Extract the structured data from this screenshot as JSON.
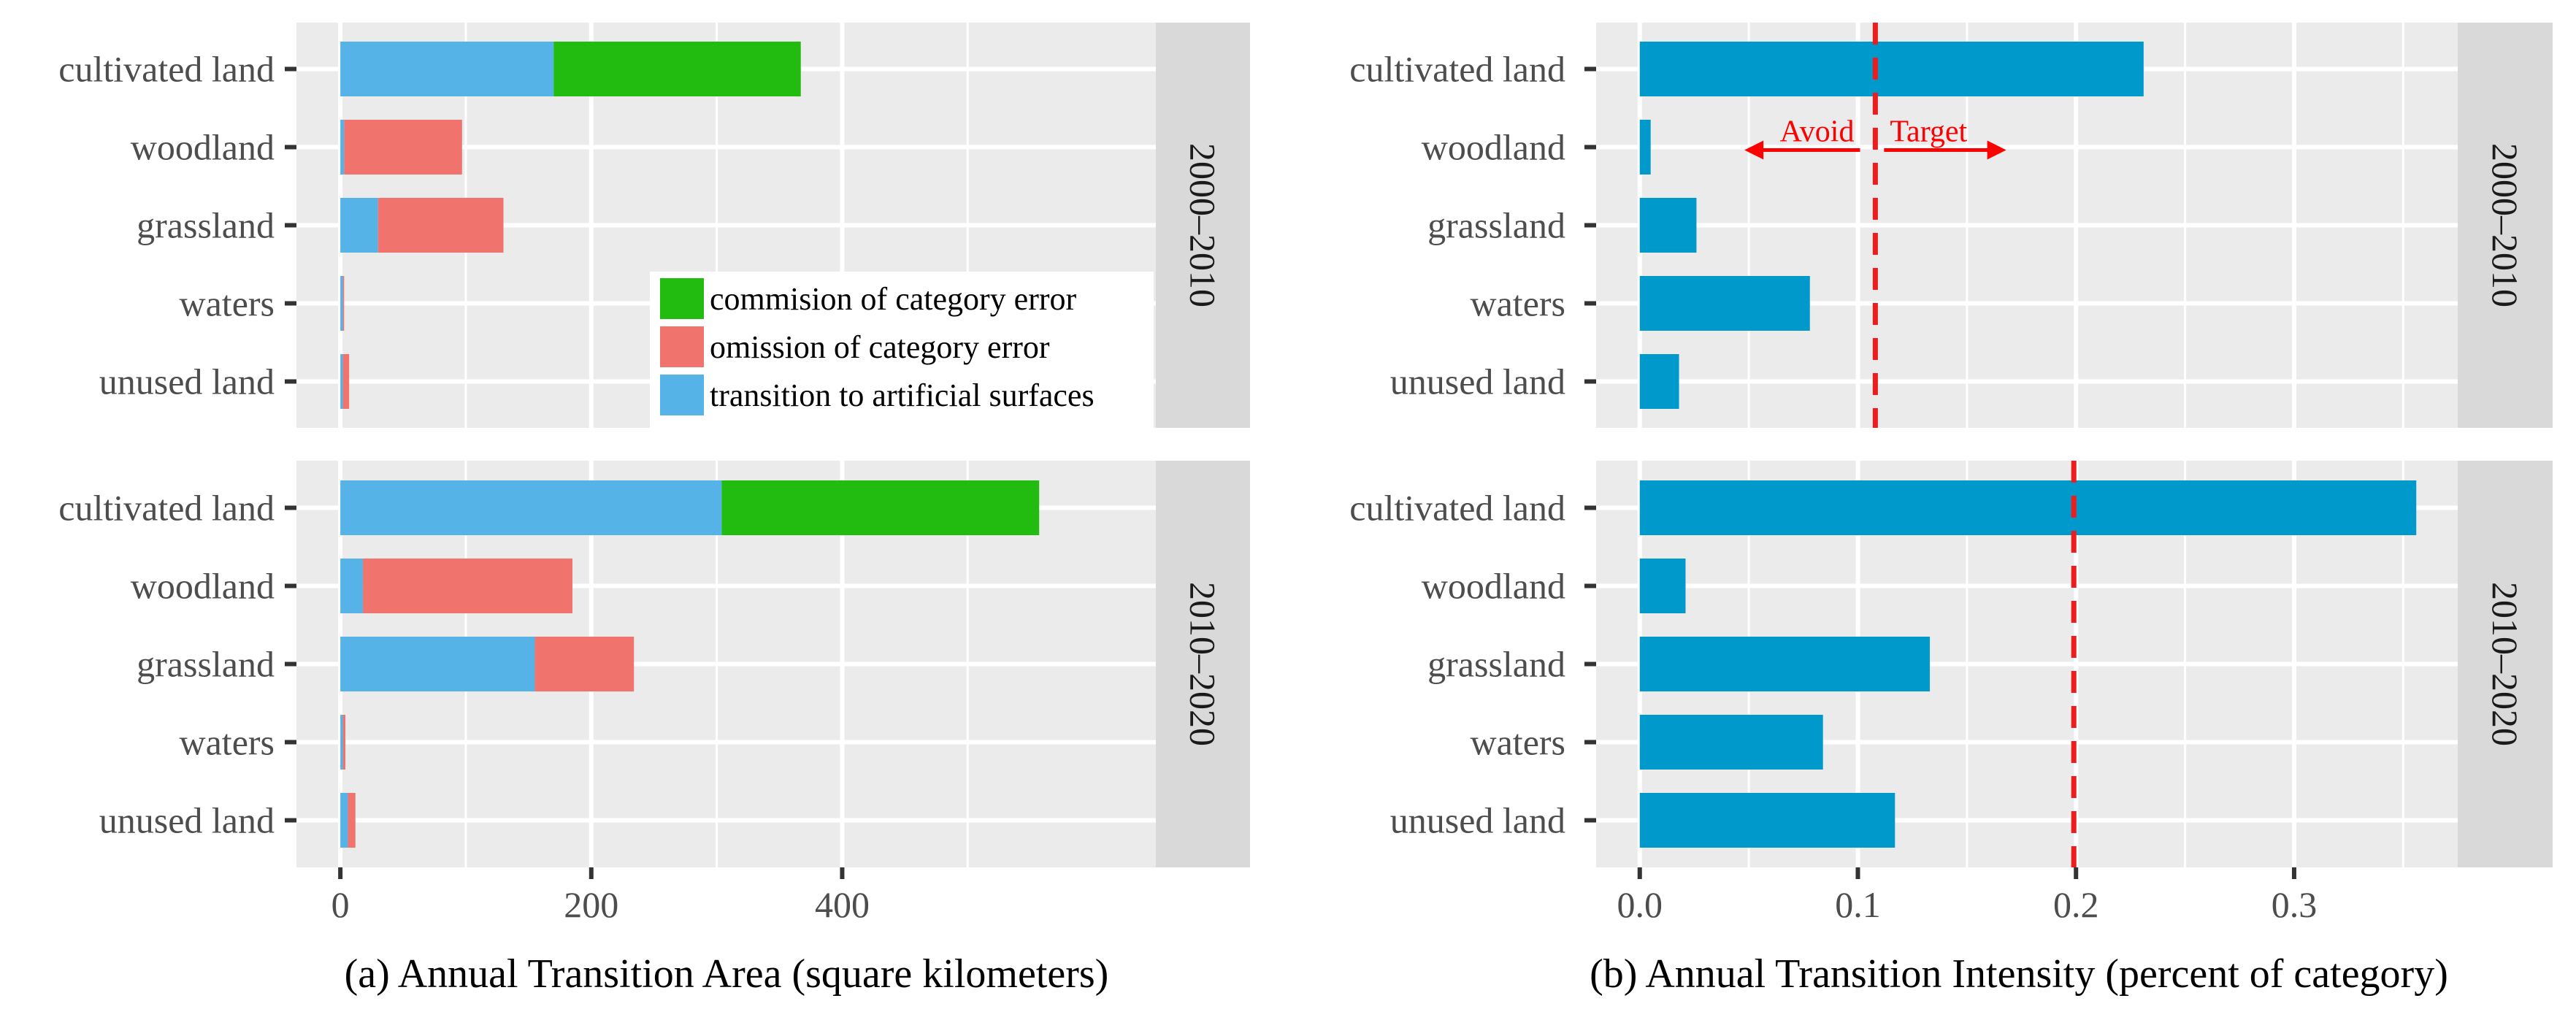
{
  "colors": {
    "commission": "#22bb0f",
    "omission": "#f0736d",
    "transition": "#56b3e8",
    "intensity": "#0099cc",
    "panel_bg": "#ebebeb",
    "strip_bg": "#d9d9d9",
    "reference": "#ee1c1c",
    "annotation": "#ff0000"
  },
  "chart_data": [
    {
      "id": "a",
      "type": "bar",
      "orientation": "horizontal",
      "stacked": true,
      "xlabel": "(a) Annual Transition Area (square kilometers)",
      "xlim": [
        -35,
        650
      ],
      "xticks": [
        0,
        200,
        400
      ],
      "categories": [
        "cultivated land",
        "woodland",
        "grassland",
        "waters",
        "unused land"
      ],
      "legend": {
        "placement": "inside bottom-right of top facet",
        "entries": [
          {
            "key": "commission",
            "label": "commision of category error"
          },
          {
            "key": "omission",
            "label": "omission of category error"
          },
          {
            "key": "transition",
            "label": "transition to artificial surfaces"
          }
        ]
      },
      "facets": [
        {
          "label": "2000–2010",
          "series": [
            {
              "key": "transition",
              "name": "transition to artificial surfaces",
              "values": [
                170,
                3,
                30,
                2,
                2
              ]
            },
            {
              "key": "omission",
              "name": "omission of category error",
              "values": [
                0,
                94,
                100,
                1,
                5
              ]
            },
            {
              "key": "commission",
              "name": "commision of category error",
              "values": [
                197,
                0,
                0,
                0,
                0
              ]
            }
          ]
        },
        {
          "label": "2010–2020",
          "series": [
            {
              "key": "transition",
              "name": "transition to artificial surfaces",
              "values": [
                304,
                18,
                155,
                2,
                6
              ]
            },
            {
              "key": "omission",
              "name": "omission of category error",
              "values": [
                0,
                167,
                79,
                2,
                6
              ]
            },
            {
              "key": "commission",
              "name": "commision of category error",
              "values": [
                253,
                0,
                0,
                0,
                0
              ]
            }
          ]
        }
      ]
    },
    {
      "id": "b",
      "type": "bar",
      "orientation": "horizontal",
      "xlabel": "(b) Annual Transition Intensity (percent of category)",
      "xlim": [
        -0.02,
        0.375
      ],
      "xticks": [
        0.0,
        0.1,
        0.2,
        0.3
      ],
      "xtick_labels": [
        "0.0",
        "0.1",
        "0.2",
        "0.3"
      ],
      "categories": [
        "cultivated land",
        "woodland",
        "grassland",
        "waters",
        "unused land"
      ],
      "facets": [
        {
          "label": "2000–2010",
          "values": [
            0.231,
            0.005,
            0.026,
            0.078,
            0.018
          ],
          "reference_line": 0.108,
          "annotations": [
            {
              "text": "Avoid",
              "direction": "left",
              "from": 0.101,
              "to": 0.048
            },
            {
              "text": "Target",
              "direction": "right",
              "from": 0.112,
              "to": 0.168
            }
          ]
        },
        {
          "label": "2010–2020",
          "values": [
            0.356,
            0.021,
            0.133,
            0.084,
            0.117
          ],
          "reference_line": 0.199
        }
      ]
    }
  ]
}
